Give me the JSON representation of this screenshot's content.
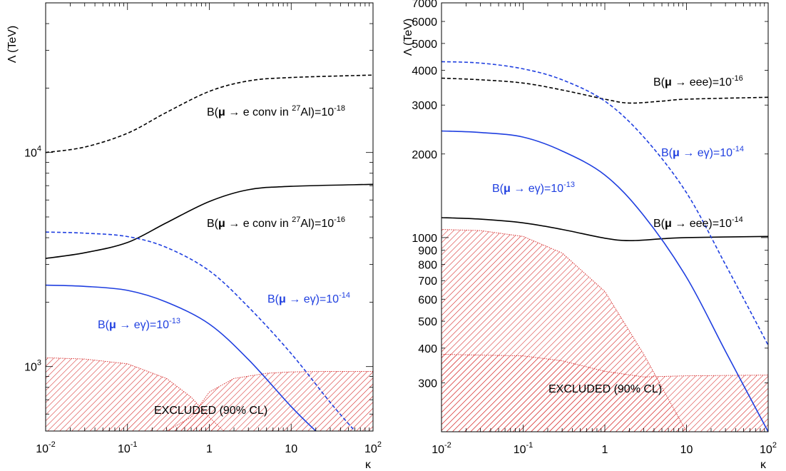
{
  "chart_data": [
    {
      "type": "line",
      "xlabel": "κ",
      "ylabel": "Λ (TeV)",
      "xscale": "log",
      "yscale": "log",
      "xlim": [
        0.01,
        100
      ],
      "ylim": [
        500,
        50000
      ],
      "x_ticks": [
        {
          "v": 0.01,
          "base": "10",
          "exp": "-2"
        },
        {
          "v": 0.1,
          "base": "10",
          "exp": "-1"
        },
        {
          "v": 1,
          "base": "1",
          "exp": ""
        },
        {
          "v": 10,
          "base": "10",
          "exp": ""
        },
        {
          "v": 100,
          "base": "10",
          "exp": "2"
        }
      ],
      "y_ticks": [
        {
          "v": 1000,
          "base": "10",
          "exp": "3"
        },
        {
          "v": 10000,
          "base": "10",
          "exp": "4"
        }
      ],
      "excluded_regions": [
        {
          "color": "#d42020",
          "x": [
            0.01,
            0.03,
            0.1,
            0.3,
            0.6,
            1,
            1.5,
            3,
            10,
            100
          ],
          "y": [
            1100,
            1085,
            1030,
            880,
            720,
            580,
            500,
            500,
            500,
            500
          ]
        },
        {
          "color": "#d42020",
          "x": [
            0.01,
            0.3,
            0.6,
            1,
            2,
            5,
            10,
            30,
            100
          ],
          "y": [
            500,
            500,
            580,
            760,
            880,
            930,
            945,
            950,
            950
          ]
        }
      ],
      "series": [
        {
          "id": "conv18",
          "color": "#000000",
          "dash": "5,3",
          "x": [
            0.01,
            0.03,
            0.1,
            0.3,
            1,
            3,
            10,
            100
          ],
          "y": [
            10000,
            10600,
            12300,
            15400,
            19300,
            21600,
            22400,
            23000
          ]
        },
        {
          "id": "conv16",
          "color": "#000000",
          "dash": "",
          "x": [
            0.01,
            0.03,
            0.1,
            0.3,
            1,
            3,
            10,
            100
          ],
          "y": [
            3200,
            3400,
            3800,
            4700,
            5900,
            6700,
            6950,
            7100
          ]
        },
        {
          "id": "eg14",
          "color": "#1f3fe0",
          "dash": "5,3",
          "x": [
            0.01,
            0.03,
            0.1,
            0.3,
            1,
            3,
            10,
            30,
            60
          ],
          "y": [
            4250,
            4200,
            4050,
            3600,
            2800,
            1900,
            1150,
            680,
            500
          ]
        },
        {
          "id": "eg13",
          "color": "#1f3fe0",
          "dash": "",
          "x": [
            0.01,
            0.03,
            0.1,
            0.3,
            1,
            3,
            10,
            20
          ],
          "y": [
            2400,
            2370,
            2270,
            2000,
            1580,
            1080,
            650,
            500
          ]
        }
      ],
      "annotations": {
        "conv18": {
          "pre": "B(",
          "mu": "μ",
          "mid": " → e conv in ",
          "iso": "27",
          "elem": "Al)=10",
          "exp": "-18"
        },
        "conv16": {
          "pre": "B(",
          "mu": "μ",
          "mid": " → e conv in ",
          "iso": "27",
          "elem": "Al)=10",
          "exp": "-16"
        },
        "eg14": {
          "pre": "B(",
          "mu": "μ",
          "mid": " → eγ)=10",
          "exp": "-14"
        },
        "eg13": {
          "pre": "B(",
          "mu": "μ",
          "mid": " → eγ)=10",
          "exp": "-13"
        },
        "excluded": "EXCLUDED (90% CL)"
      }
    },
    {
      "type": "line",
      "xlabel": "κ",
      "ylabel": "Λ (TeV)",
      "xscale": "log",
      "yscale": "log",
      "xlim": [
        0.01,
        100
      ],
      "ylim": [
        200,
        7000
      ],
      "x_ticks": [
        {
          "v": 0.01,
          "base": "10",
          "exp": "-2"
        },
        {
          "v": 0.1,
          "base": "10",
          "exp": "-1"
        },
        {
          "v": 1,
          "base": "1",
          "exp": ""
        },
        {
          "v": 10,
          "base": "10",
          "exp": ""
        },
        {
          "v": 100,
          "base": "10",
          "exp": "2"
        }
      ],
      "y_ticks": [
        {
          "v": 300,
          "label": "300"
        },
        {
          "v": 400,
          "label": "400"
        },
        {
          "v": 500,
          "label": "500"
        },
        {
          "v": 600,
          "label": "600"
        },
        {
          "v": 700,
          "label": "700"
        },
        {
          "v": 800,
          "label": "800"
        },
        {
          "v": 900,
          "label": "900"
        },
        {
          "v": 1000,
          "label": "1000"
        },
        {
          "v": 2000,
          "label": "2000"
        },
        {
          "v": 3000,
          "label": "3000"
        },
        {
          "v": 4000,
          "label": "4000"
        },
        {
          "v": 5000,
          "label": "5000"
        },
        {
          "v": 6000,
          "label": "6000"
        },
        {
          "v": 7000,
          "label": "7000"
        }
      ],
      "excluded_regions": [
        {
          "color": "#d42020",
          "x": [
            0.01,
            0.03,
            0.1,
            0.3,
            1,
            3,
            10,
            30,
            100
          ],
          "y": [
            1070,
            1060,
            1010,
            880,
            640,
            380,
            200,
            200,
            200
          ]
        },
        {
          "color": "#d42020",
          "x": [
            0.01,
            0.1,
            0.3,
            1,
            3,
            10,
            100
          ],
          "y": [
            380,
            375,
            360,
            330,
            315,
            318,
            320
          ]
        }
      ],
      "series": [
        {
          "id": "eee16",
          "color": "#000000",
          "dash": "5,3",
          "x": [
            0.01,
            0.03,
            0.1,
            0.3,
            1,
            2,
            5,
            10,
            100
          ],
          "y": [
            3750,
            3700,
            3600,
            3400,
            3150,
            3050,
            3100,
            3150,
            3200
          ]
        },
        {
          "id": "eee14",
          "color": "#000000",
          "dash": "",
          "x": [
            0.01,
            0.03,
            0.1,
            0.3,
            1,
            2,
            5,
            10,
            100
          ],
          "y": [
            1180,
            1165,
            1130,
            1070,
            995,
            975,
            990,
            1000,
            1010
          ]
        },
        {
          "id": "eg14",
          "color": "#1f3fe0",
          "dash": "5,3",
          "x": [
            0.01,
            0.03,
            0.1,
            0.3,
            1,
            3,
            10,
            30,
            100
          ],
          "y": [
            4300,
            4250,
            4050,
            3700,
            3100,
            2300,
            1450,
            800,
            410
          ]
        },
        {
          "id": "eg13",
          "color": "#1f3fe0",
          "dash": "",
          "x": [
            0.01,
            0.03,
            0.1,
            0.3,
            1,
            3,
            10,
            30,
            100
          ],
          "y": [
            2420,
            2390,
            2300,
            2050,
            1680,
            1200,
            720,
            390,
            200
          ]
        }
      ],
      "annotations": {
        "eee16": {
          "pre": "B(",
          "mu": "μ",
          "mid": " → eee)=10",
          "exp": "-16"
        },
        "eee14": {
          "pre": "B(",
          "mu": "μ",
          "mid": " → eee)=10",
          "exp": "-14"
        },
        "eg14": {
          "pre": "B(",
          "mu": "μ",
          "mid": " → eγ)=10",
          "exp": "-14"
        },
        "eg13": {
          "pre": "B(",
          "mu": "μ",
          "mid": " → eγ)=10",
          "exp": "-13"
        },
        "excluded": "EXCLUDED (90% CL)"
      }
    }
  ]
}
